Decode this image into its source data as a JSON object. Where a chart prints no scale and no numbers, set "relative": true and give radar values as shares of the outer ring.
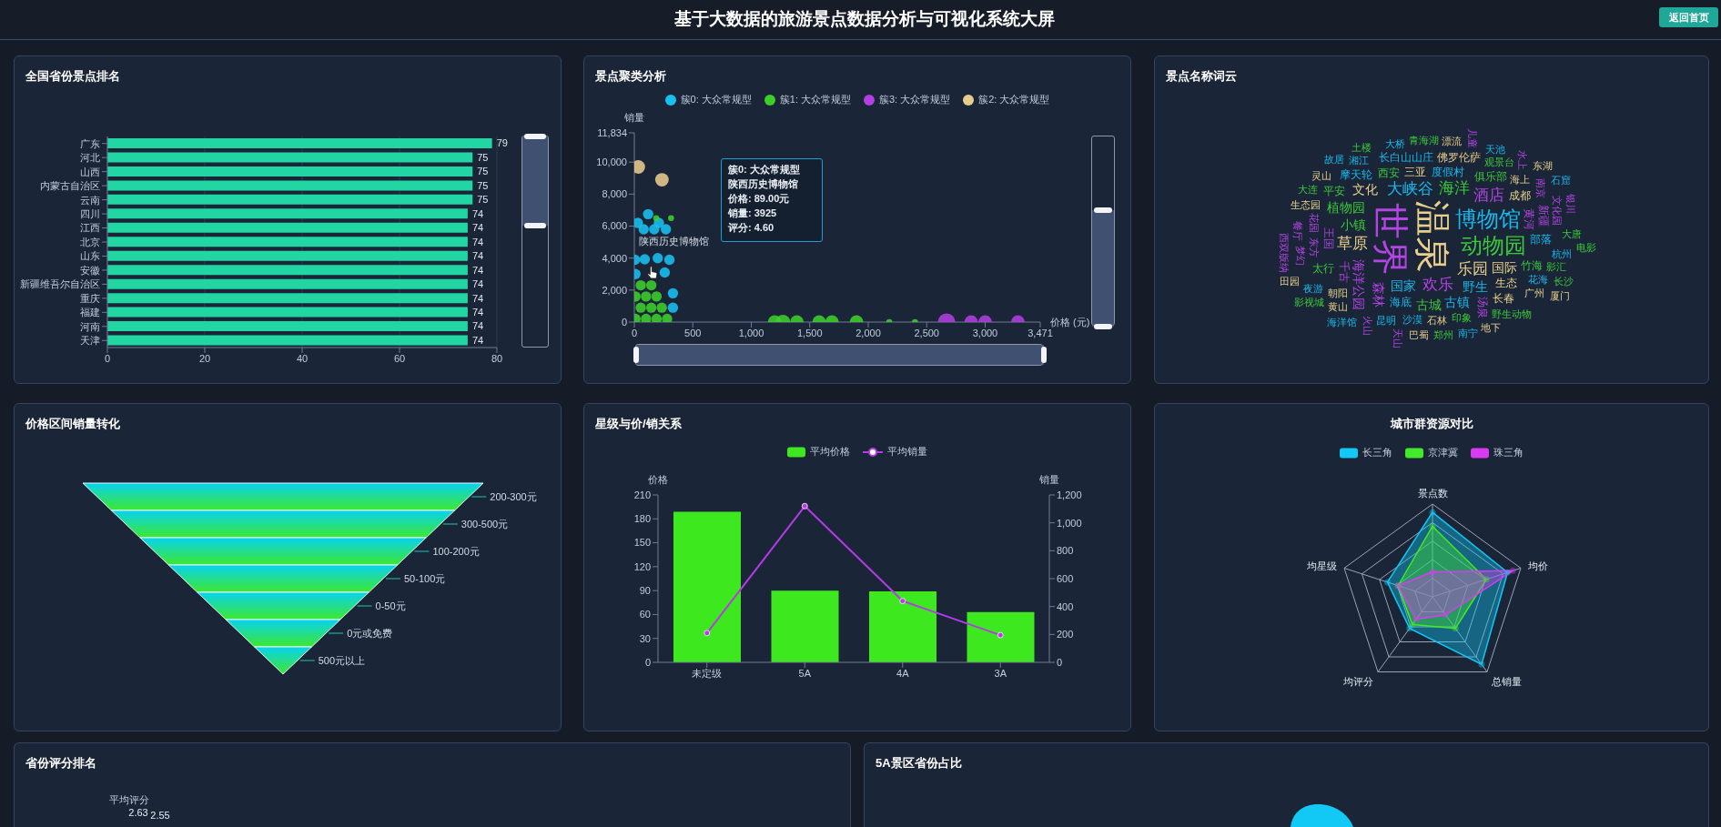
{
  "chart_data": [
    {
      "type": "other",
      "title": "基于大数据的旅游景点数据分析与可视化系统大屏",
      "annotations": [
        "返回首页"
      ]
    },
    {
      "type": "bar",
      "title": "全国省份景点排名",
      "orientation": "horizontal",
      "categories": [
        "广东",
        "河北",
        "山西",
        "内蒙古自治区",
        "云南",
        "四川",
        "江西",
        "北京",
        "山东",
        "安徽",
        "新疆维吾尔自治区",
        "重庆",
        "福建",
        "河南",
        "天津"
      ],
      "values": [
        79,
        75,
        75,
        75,
        75,
        74,
        74,
        74,
        74,
        74,
        74,
        74,
        74,
        74,
        74
      ],
      "color": "#22d6a4",
      "xlim": [
        0,
        80
      ],
      "xticks": [
        0,
        20,
        40,
        60,
        80
      ],
      "grid": "x",
      "data_labels": true
    },
    {
      "type": "bubble",
      "title": "景点聚类分析",
      "xlabel": "价格 (元)",
      "ylabel": "销量",
      "legend": "top",
      "marker": "circle",
      "xlim": [
        0,
        3471
      ],
      "xticks": [
        0,
        500,
        {
          "value": 1000,
          "label": "1,000"
        },
        {
          "value": 1500,
          "label": "1,500"
        },
        {
          "value": 2000,
          "label": "2,000"
        },
        {
          "value": 2500,
          "label": "2,500"
        },
        {
          "value": 3000,
          "label": "3,000"
        },
        {
          "value": 3471,
          "label": "3,471"
        }
      ],
      "ylim": [
        0,
        11834
      ],
      "yticks": [
        0,
        {
          "value": 2000,
          "label": "2,000"
        },
        {
          "value": 4000,
          "label": "4,000"
        },
        {
          "value": 6000,
          "label": "6,000"
        },
        {
          "value": 8000,
          "label": "8,000"
        },
        {
          "value": 10000,
          "label": "10,000"
        },
        {
          "value": 11834,
          "label": "11,834"
        }
      ],
      "series": [
        {
          "name": "簇0: 大众常规型",
          "color": "#18c0f0",
          "x": [
            89,
            5,
            200,
            300,
            10,
            260,
            330,
            330,
            80,
            170,
            270,
            30,
            210,
            118
          ],
          "values": [
            3925,
            3900,
            4000,
            3900,
            3000,
            3100,
            1800,
            900,
            5800,
            5800,
            5800,
            6200,
            6200,
            6750
          ],
          "sizes": [
            0.35,
            0.35,
            0.35,
            0.35,
            0.35,
            0.35,
            0.35,
            0.35,
            0.35,
            0.35,
            0.35,
            0.35,
            0.35,
            0.35
          ]
        },
        {
          "name": "簇1: 大众常规型",
          "color": "#3ccf2a",
          "x": [
            10,
            100,
            190,
            280,
            55,
            145,
            235,
            10,
            100,
            190,
            55,
            145,
            187,
            314,
            1200,
            1270,
            1390,
            1580,
            1690,
            1900,
            2180,
            2400
          ],
          "values": [
            200,
            200,
            200,
            200,
            900,
            900,
            900,
            1600,
            1600,
            1600,
            2300,
            2300,
            6500,
            6500,
            0,
            0,
            0,
            0,
            0,
            0,
            0,
            0
          ],
          "sizes": [
            0.35,
            0.35,
            0.35,
            0.35,
            0.35,
            0.35,
            0.35,
            0.35,
            0.35,
            0.35,
            0.35,
            0.35,
            0.12,
            0.12,
            0.6,
            0.7,
            0.6,
            0.6,
            0.6,
            0.6,
            0.12,
            0.12
          ]
        },
        {
          "name": "簇3: 大众常规型",
          "color": "#b23fe0",
          "x": [
            2670,
            2880,
            3000,
            3280
          ],
          "values": [
            0,
            0,
            0,
            0
          ],
          "sizes": [
            1,
            0.6,
            0.6,
            0.6
          ]
        },
        {
          "name": "簇2: 大众常规型",
          "color": "#e8cc8e",
          "x": [
            34,
            236
          ],
          "values": [
            9700,
            8900
          ],
          "sizes": [
            0.6,
            0.6
          ]
        }
      ],
      "annotations": [
        {
          "text": "陕西历史博物馆",
          "x": 89,
          "y": 3925
        },
        "簇0: 大众常规型",
        "陕西历史博物馆",
        "价格: 89.00元",
        "销量: 3925",
        "评分: 4.60"
      ]
    },
    {
      "type": "other",
      "title": "景点名称词云",
      "categories": [
        "温泉",
        "世界",
        "博物馆",
        "动物园",
        "乐园",
        "欢乐",
        "大峡谷",
        "海洋",
        "草原",
        "酒店",
        "国家",
        "小镇",
        "国际",
        "海洋公园",
        "野生",
        "植物园",
        "文化",
        "森林",
        "古镇",
        "古城",
        "三亚",
        "黄河",
        "度假村",
        "俱乐部",
        "生态",
        "千古",
        "海底",
        "西安",
        "成都",
        "王国",
        "部落",
        "竹海",
        "长春",
        "新疆",
        "长白山山庄",
        "太行",
        "佛罗伦萨",
        "汤泉",
        "摩天轮",
        "平安",
        "海上",
        "东方",
        "花海",
        "印象",
        "石林",
        "花园",
        "沙漠",
        "观景台",
        "朝阳",
        "文化园",
        "杭州",
        "影汇",
        "广州",
        "南京",
        "昆明",
        "野生动物",
        "生态园",
        "梦幻",
        "湘江",
        "大唐",
        "黄山",
        "餐厅",
        "夜游",
        "大连",
        "灵山",
        "水上",
        "大桥",
        "青海湖",
        "漂流",
        "银川",
        "天池",
        "长沙",
        "地下",
        "火山",
        "南宁",
        "郑州",
        "巴蜀",
        "西双版纳",
        "故居",
        "土楼",
        "东湖",
        "儿童",
        "石窟",
        "电影",
        "厦门",
        "天山",
        "海洋馆",
        "影视城",
        "田园"
      ]
    },
    {
      "type": "other",
      "title": "价格区间销量转化",
      "categories": [
        "200-300元",
        "300-500元",
        "100-200元",
        "50-100元",
        "0-50元",
        "0元或免费",
        "500元以上"
      ]
    },
    {
      "type": "bar",
      "title": "星级与价/销关系",
      "categories": [
        "未定级",
        "5A",
        "4A",
        "3A"
      ],
      "ylabel": "价格",
      "y2label": "销量",
      "ylim": [
        0,
        210
      ],
      "yticks": [
        0,
        30,
        60,
        90,
        120,
        150,
        180,
        210
      ],
      "y2lim": [
        0,
        1200
      ],
      "y2ticks": [
        0,
        200,
        400,
        600,
        800,
        {
          "value": 1000,
          "label": "1,000"
        },
        {
          "value": 1200,
          "label": "1,200"
        }
      ],
      "legend": "top",
      "marker": "circle",
      "series": [
        {
          "name": "平均价格",
          "type": "bar",
          "color": "#3de81e",
          "values": [
            189,
            90,
            89,
            63
          ]
        },
        {
          "name": "平均销量",
          "type": "line",
          "axis": "y2",
          "color": "#b43ce6",
          "values": [
            210,
            1120,
            440,
            195
          ]
        }
      ]
    },
    {
      "type": "radar",
      "title": "城市群资源对比",
      "categories": [
        "景点数",
        "均价",
        "总销量",
        "均评分",
        "均星级"
      ],
      "relative": true,
      "grid": true,
      "legend": "top",
      "marker": "circle",
      "series": [
        {
          "name": "长三角",
          "color": "#12c8f5",
          "values": [
            0.91,
            0.85,
            0.9,
            0.42,
            0.51
          ]
        },
        {
          "name": "京津冀",
          "color": "#44e82a",
          "values": [
            0.76,
            0.61,
            0.42,
            0.37,
            0.39
          ]
        },
        {
          "name": "珠三角",
          "color": "#d83cf0",
          "values": [
            0.27,
            0.91,
            0.24,
            0.3,
            0.39
          ]
        }
      ]
    },
    {
      "type": "other",
      "title": "省份评分排名",
      "ylabel": "平均评分",
      "annotations": [
        "2.63",
        "2.55"
      ]
    },
    {
      "type": "other",
      "title": "5A景区省份占比"
    }
  ]
}
